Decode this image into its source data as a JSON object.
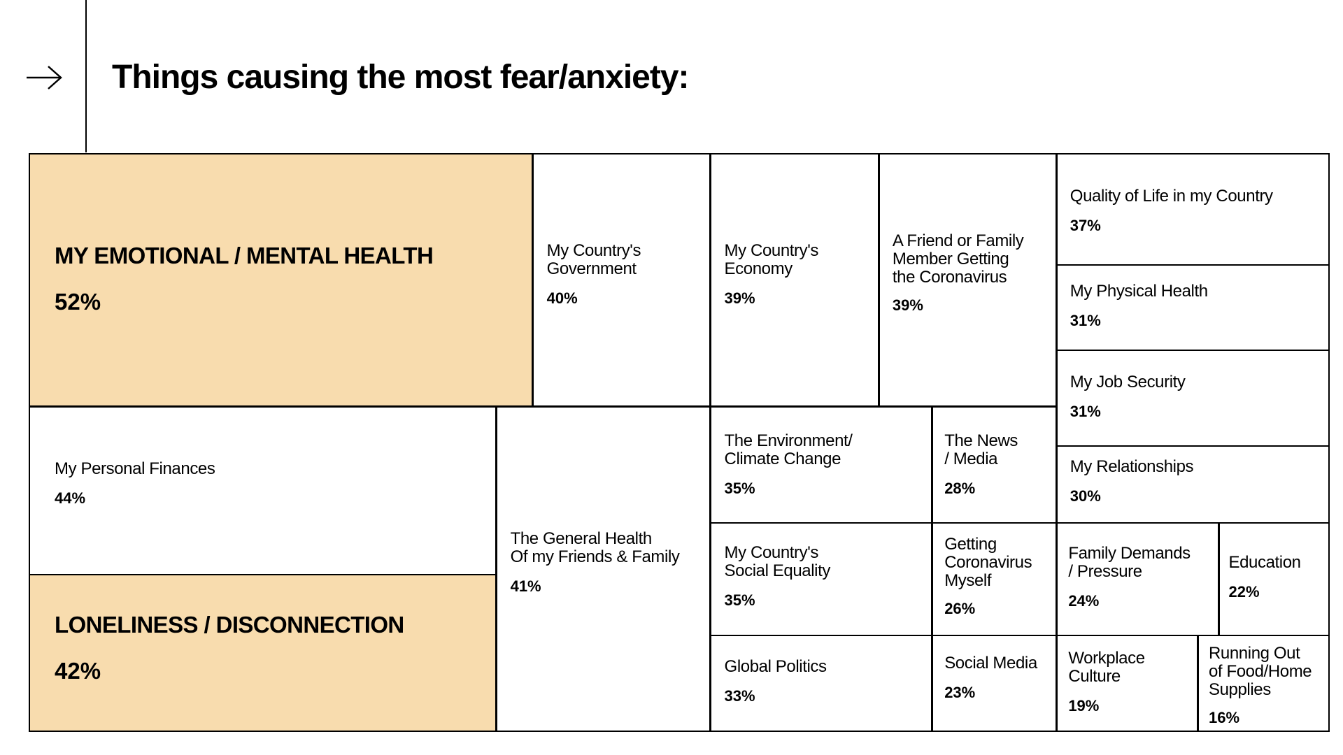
{
  "title": "Things causing the most fear/anxiety:",
  "icon": "arrow-right-icon",
  "colors": {
    "highlight": "#f8dcae",
    "border": "#000000",
    "background": "#ffffff",
    "text": "#000000"
  },
  "chart_data": {
    "type": "treemap",
    "title": "Things causing the most fear/anxiety:",
    "unit": "%",
    "items": [
      {
        "label": "MY EMOTIONAL / MENTAL HEALTH",
        "value": 52,
        "value_label": "52%",
        "highlight": true
      },
      {
        "label": "My Personal Finances",
        "value": 44,
        "value_label": "44%",
        "highlight": false
      },
      {
        "label": "LONELINESS / DISCONNECTION",
        "value": 42,
        "value_label": "42%",
        "highlight": true
      },
      {
        "label": "The General Health\nOf my Friends & Family",
        "value": 41,
        "value_label": "41%",
        "highlight": false
      },
      {
        "label": "My Country's\nGovernment",
        "value": 40,
        "value_label": "40%",
        "highlight": false
      },
      {
        "label": "My Country's\nEconomy",
        "value": 39,
        "value_label": "39%",
        "highlight": false
      },
      {
        "label": "A Friend or Family\nMember Getting\nthe Coronavirus",
        "value": 39,
        "value_label": "39%",
        "highlight": false
      },
      {
        "label": "Quality of Life in my Country",
        "value": 37,
        "value_label": "37%",
        "highlight": false
      },
      {
        "label": "The Environment/\nClimate Change",
        "value": 35,
        "value_label": "35%",
        "highlight": false
      },
      {
        "label": "My Country's\nSocial Equality",
        "value": 35,
        "value_label": "35%",
        "highlight": false
      },
      {
        "label": "Global Politics",
        "value": 33,
        "value_label": "33%",
        "highlight": false
      },
      {
        "label": "My Physical Health",
        "value": 31,
        "value_label": "31%",
        "highlight": false
      },
      {
        "label": "My Job Security",
        "value": 31,
        "value_label": "31%",
        "highlight": false
      },
      {
        "label": "My Relationships",
        "value": 30,
        "value_label": "30%",
        "highlight": false
      },
      {
        "label": "The News\n/ Media",
        "value": 28,
        "value_label": "28%",
        "highlight": false
      },
      {
        "label": "Getting\nCoronavirus\nMyself",
        "value": 26,
        "value_label": "26%",
        "highlight": false
      },
      {
        "label": "Family Demands\n/ Pressure",
        "value": 24,
        "value_label": "24%",
        "highlight": false
      },
      {
        "label": "Social Media",
        "value": 23,
        "value_label": "23%",
        "highlight": false
      },
      {
        "label": "Education",
        "value": 22,
        "value_label": "22%",
        "highlight": false
      },
      {
        "label": "Workplace\nCulture",
        "value": 19,
        "value_label": "19%",
        "highlight": false
      },
      {
        "label": "Running Out\nof Food/Home\nSupplies",
        "value": 16,
        "value_label": "16%",
        "highlight": false
      }
    ]
  }
}
